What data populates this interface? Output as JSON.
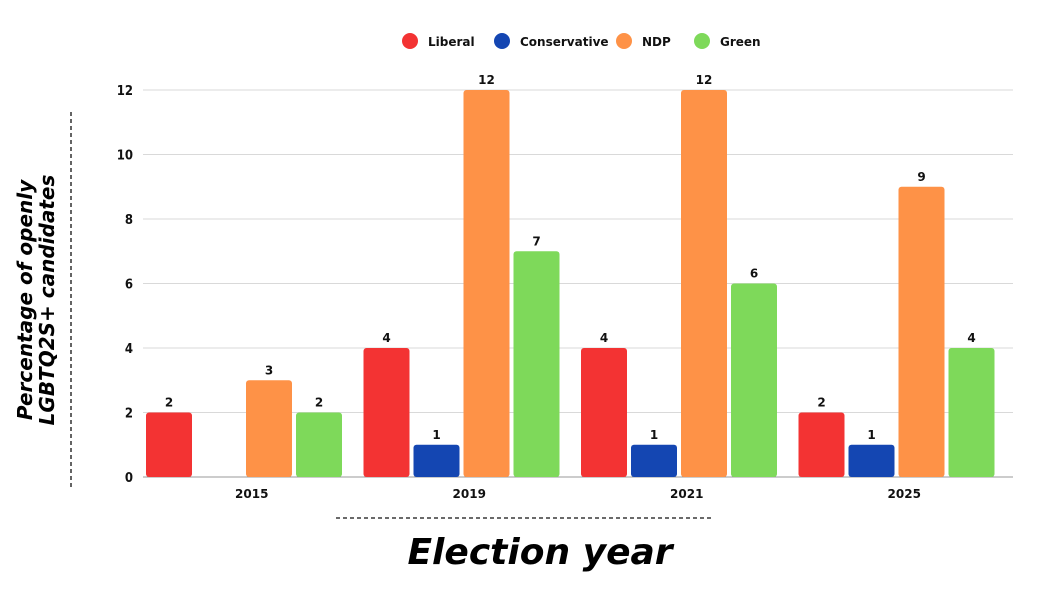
{
  "chart_data": {
    "type": "bar",
    "categories": [
      "2015",
      "2019",
      "2021",
      "2025"
    ],
    "series": [
      {
        "name": "Liberal",
        "color": "#f33333",
        "values": [
          2,
          4,
          4,
          2
        ]
      },
      {
        "name": "Conservative",
        "color": "#1446b2",
        "values": [
          0,
          1,
          1,
          1
        ]
      },
      {
        "name": "NDP",
        "color": "#fe9247",
        "values": [
          3,
          12,
          12,
          9
        ]
      },
      {
        "name": "Green",
        "color": "#7ed95a",
        "values": [
          2,
          7,
          6,
          4
        ]
      }
    ],
    "xlabel": "Election year",
    "ylabel_line1": "Percentage of openly",
    "ylabel_line2": "LGBTQ2S+ candidates",
    "ylim": [
      0,
      12
    ],
    "yticks": [
      0,
      2,
      4,
      6,
      8,
      10,
      12
    ],
    "grid": true,
    "legend_position": "top"
  }
}
